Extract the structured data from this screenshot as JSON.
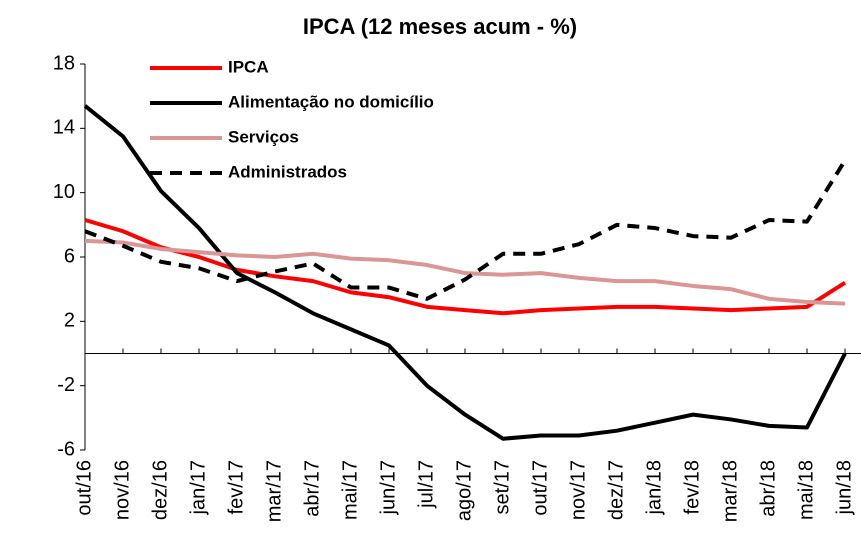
{
  "chart_data": {
    "type": "line",
    "title": "IPCA (12 meses acum - %)",
    "categories": [
      "out/16",
      "nov/16",
      "dez/16",
      "jan/17",
      "fev/17",
      "mar/17",
      "abr/17",
      "mai/17",
      "jun/17",
      "jul/17",
      "ago/17",
      "set/17",
      "out/17",
      "nov/17",
      "dez/17",
      "jan/18",
      "fev/18",
      "mar/18",
      "abr/18",
      "mai/18",
      "jun/18"
    ],
    "series": [
      {
        "name": "IPCA",
        "color": "#ff0000",
        "line_style": "solid",
        "values": [
          8.3,
          7.6,
          6.6,
          6.0,
          5.2,
          4.8,
          4.5,
          3.8,
          3.5,
          2.9,
          2.7,
          2.5,
          2.7,
          2.8,
          2.9,
          2.9,
          2.8,
          2.7,
          2.8,
          2.9,
          4.4
        ]
      },
      {
        "name": "Alimentação no domicílio",
        "color": "#000000",
        "line_style": "solid",
        "values": [
          15.4,
          13.5,
          10.1,
          7.8,
          5.0,
          3.8,
          2.5,
          1.5,
          0.5,
          -2.0,
          -3.8,
          -5.3,
          -5.1,
          -5.1,
          -4.8,
          -4.3,
          -3.8,
          -4.1,
          -4.5,
          -4.6,
          0.0
        ]
      },
      {
        "name": "Serviços",
        "color": "#d99694",
        "line_style": "solid",
        "values": [
          7.0,
          6.9,
          6.5,
          6.3,
          6.1,
          6.0,
          6.2,
          5.9,
          5.8,
          5.5,
          5.0,
          4.9,
          5.0,
          4.7,
          4.5,
          4.5,
          4.2,
          4.0,
          3.4,
          3.2,
          3.1
        ]
      },
      {
        "name": "Administrados",
        "color": "#000000",
        "line_style": "dashed",
        "values": [
          7.6,
          6.7,
          5.7,
          5.3,
          4.5,
          5.1,
          5.6,
          4.1,
          4.1,
          3.4,
          4.6,
          6.2,
          6.2,
          6.8,
          8.0,
          7.8,
          7.3,
          7.2,
          8.3,
          8.2,
          12.0
        ]
      }
    ],
    "ylim": [
      -6,
      18
    ],
    "yticks": [
      -6,
      -2,
      2,
      6,
      10,
      14,
      18
    ],
    "grid": false,
    "legend": "upper left"
  }
}
